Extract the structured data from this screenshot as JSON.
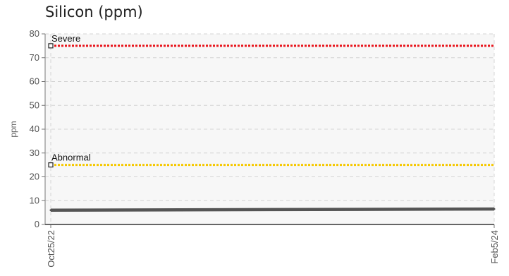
{
  "chart_data": {
    "type": "line",
    "title": "Silicon (ppm)",
    "ylabel": "ppm",
    "xlabel": "",
    "ylim": [
      0,
      80
    ],
    "yticks": [
      0,
      10,
      20,
      30,
      40,
      50,
      60,
      70,
      80
    ],
    "categories": [
      "Oct25/22",
      "Feb5/24"
    ],
    "series": [
      {
        "values": [
          6,
          6.5
        ],
        "color": "#555555"
      }
    ],
    "thresholds": [
      {
        "name": "Severe",
        "value": 75,
        "color": "#e8141c"
      },
      {
        "name": "Abnormal",
        "value": 25,
        "color": "#f5c800"
      }
    ],
    "grid": true
  }
}
